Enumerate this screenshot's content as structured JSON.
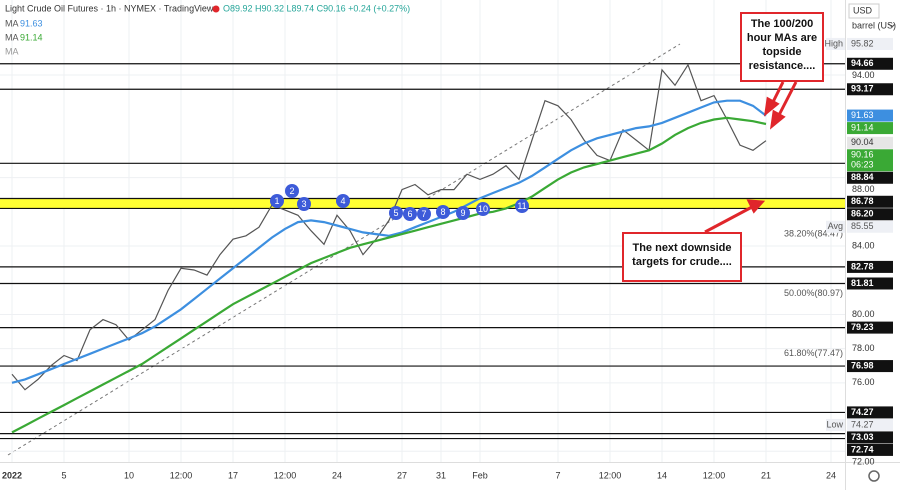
{
  "chart_data": {
    "type": "line",
    "title": "Light Crude Oil Futures · 1h · NYMEX · TradingView",
    "ohlc": "O89.92 H90.32 L89.74 C90.16 +0.24 (+0.27%)",
    "ma_extra": "MA",
    "currency": "USD",
    "unit": "barrel (US)",
    "categories": [
      "2022",
      null,
      null,
      null,
      "5",
      null,
      null,
      null,
      null,
      "10",
      null,
      null,
      null,
      "12:00",
      null,
      null,
      null,
      "17",
      null,
      null,
      null,
      "12:00",
      null,
      null,
      null,
      "24",
      null,
      null,
      null,
      null,
      "27",
      null,
      null,
      "31",
      null,
      null,
      "Feb",
      null,
      null,
      null,
      null,
      null,
      "7",
      null,
      null,
      null,
      "12:00",
      null,
      null,
      null,
      "14",
      null,
      null,
      null,
      "12:00",
      null,
      null,
      null,
      "21",
      null,
      null,
      null,
      null,
      "24"
    ],
    "series": [
      {
        "color": "#555555",
        "values": [
          76.5,
          75.6,
          76.2,
          77.0,
          77.6,
          77.3,
          79.1,
          79.7,
          79.4,
          78.5,
          79.1,
          79.7,
          81.4,
          82.7,
          82.6,
          82.3,
          83.5,
          84.4,
          84.6,
          85.1,
          86.4,
          86.1,
          85.8,
          84.9,
          84.1,
          85.8,
          84.9,
          83.5,
          84.4,
          85.5,
          87.3,
          87.6,
          87.0,
          87.3,
          87.3,
          88.2,
          87.9,
          88.2,
          88.7,
          87.9,
          90.2,
          92.5,
          92.2,
          91.4,
          90.2,
          89.3,
          89.0,
          90.8,
          90.2,
          89.6,
          94.3,
          93.4,
          94.6,
          92.5,
          92.8,
          91.4,
          89.9,
          89.6,
          90.16,
          null,
          null,
          null,
          null,
          null
        ]
      },
      {
        "name": "MA",
        "color": "#3d8fe0",
        "values": [
          76.0,
          76.2,
          76.5,
          76.8,
          77.1,
          77.4,
          77.7,
          78.0,
          78.3,
          78.6,
          78.9,
          79.3,
          79.8,
          80.3,
          80.9,
          81.5,
          82.1,
          82.7,
          83.3,
          83.9,
          84.5,
          85.0,
          85.4,
          85.5,
          85.4,
          85.2,
          85.0,
          84.8,
          84.7,
          84.6,
          84.8,
          85.1,
          85.4,
          85.7,
          86.0,
          86.4,
          86.8,
          87.1,
          87.4,
          87.7,
          88.1,
          88.6,
          89.1,
          89.6,
          90.0,
          90.3,
          90.5,
          90.7,
          90.9,
          91.0,
          91.2,
          91.5,
          91.8,
          92.1,
          92.4,
          92.5,
          92.5,
          92.2,
          91.63,
          null,
          null,
          null,
          null,
          null
        ]
      },
      {
        "name": "MA",
        "color": "#3aa935",
        "values": [
          73.1,
          73.5,
          73.9,
          74.3,
          74.7,
          75.1,
          75.5,
          75.9,
          76.3,
          76.7,
          77.1,
          77.6,
          78.1,
          78.6,
          79.1,
          79.6,
          80.1,
          80.6,
          81.0,
          81.4,
          81.8,
          82.2,
          82.6,
          83.0,
          83.3,
          83.6,
          83.9,
          84.1,
          84.3,
          84.5,
          84.7,
          84.9,
          85.1,
          85.3,
          85.5,
          85.7,
          85.9,
          86.0,
          86.2,
          86.5,
          86.9,
          87.4,
          87.9,
          88.3,
          88.6,
          88.8,
          89.0,
          89.2,
          89.4,
          89.6,
          90.0,
          90.5,
          90.9,
          91.2,
          91.4,
          91.5,
          91.4,
          91.3,
          91.14,
          null,
          null,
          null,
          null,
          null
        ]
      }
    ],
    "ylim": [
      71.37,
      98.39
    ],
    "yticks": [
      {
        "value": 72,
        "label": "72.00"
      },
      {
        "value": 76,
        "label": "76.00"
      },
      {
        "value": 78,
        "label": "78.00"
      },
      {
        "value": 80,
        "label": "80.00"
      },
      {
        "value": 84,
        "label": "84.00"
      },
      {
        "value": 88,
        "label": "88.00"
      },
      {
        "value": 94,
        "label": "94.00"
      }
    ],
    "grid": true,
    "levels": [
      94.66,
      93.17,
      88.84,
      86.78,
      {
        "value": 86.2,
        "label": "86.20"
      },
      82.78,
      81.81,
      79.23,
      76.98,
      74.27,
      73.03,
      72.74
    ],
    "band_color": "#ffff33",
    "fib": [
      {
        "value": 84.47,
        "label": "38.20%(84.47)"
      },
      {
        "value": 80.97,
        "label": "50.00%(80.97)"
      },
      {
        "value": 77.47,
        "label": "61.80%(77.47)"
      }
    ],
    "stats": [
      {
        "name": "High",
        "value": 95.82
      },
      {
        "name": "Avg",
        "value": 85.55
      },
      {
        "name": "Low",
        "value": 74.27
      }
    ],
    "prev_close": 90.04,
    "countdown": "06:23",
    "markers": [
      "1",
      "2",
      "3",
      "4",
      "5",
      "6",
      "7",
      "8",
      "9",
      "10",
      "11"
    ],
    "notes": [
      "The 100/200 hour MAs are topside resistance....",
      "The next downside targets for crude...."
    ]
  }
}
